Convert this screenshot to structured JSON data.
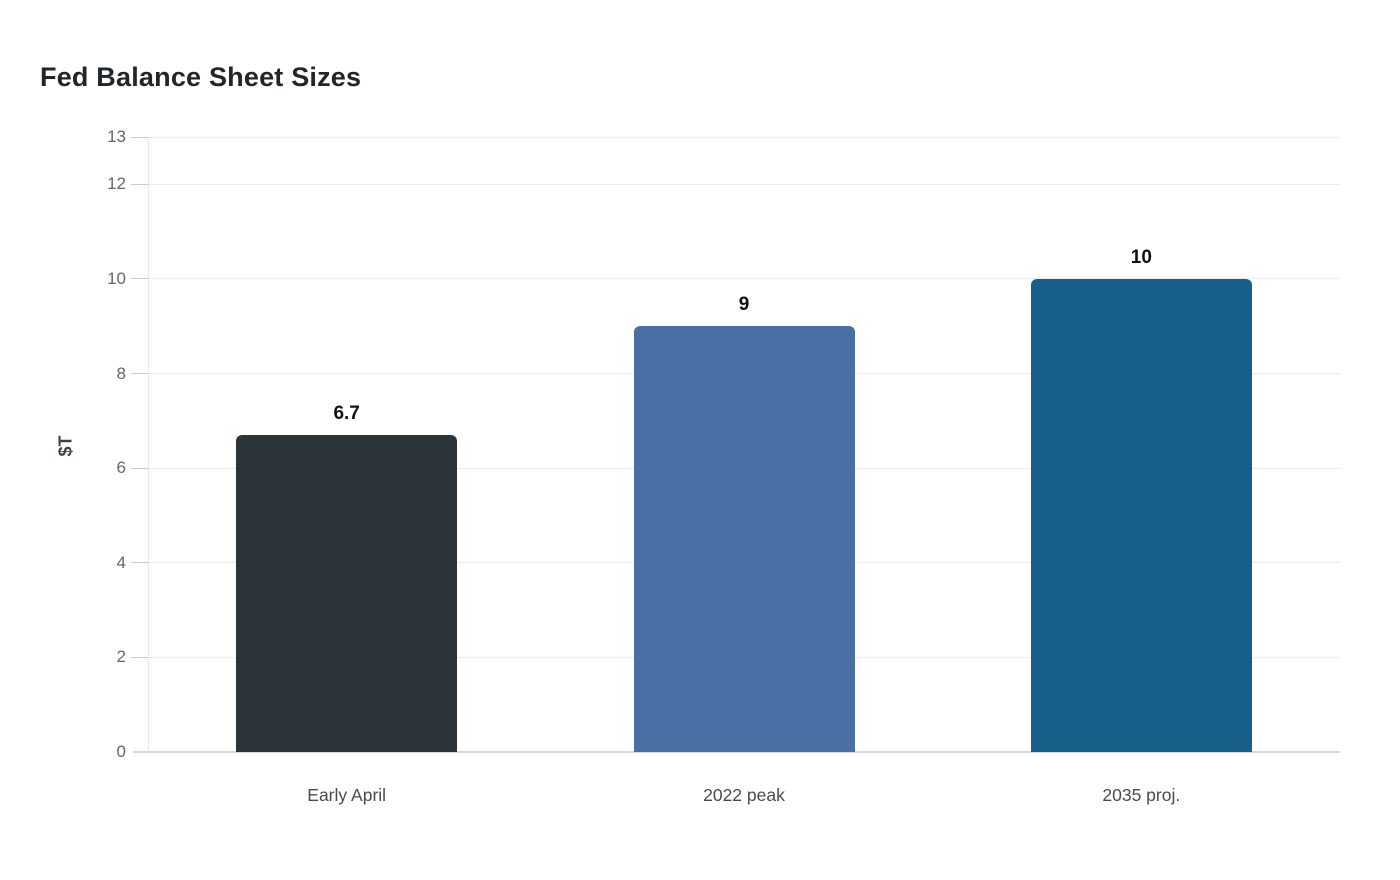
{
  "title": "Fed Balance Sheet Sizes",
  "chart_data": {
    "type": "bar",
    "title": "Fed Balance Sheet Sizes",
    "categories": [
      "Early April",
      "2022 peak",
      "2035 proj."
    ],
    "values": [
      6.7,
      9,
      10
    ],
    "value_labels": [
      "6.7",
      "9",
      "10"
    ],
    "bar_colors": [
      "#2b3439",
      "#4a6fa5",
      "#166089"
    ],
    "xlabel": "",
    "ylabel": "$T",
    "ylim": [
      0,
      13
    ],
    "yticks": [
      0,
      2,
      4,
      6,
      8,
      10,
      12,
      13
    ],
    "grid": true,
    "legend": false,
    "colors": {
      "background": "#ffffff",
      "title_text": "#21262b",
      "tick_text": "#666666",
      "category_text": "#4a4a4a",
      "value_label_text": "#111111",
      "axis_label_text": "#3d434b",
      "gridline": "#ececec",
      "zero_line": "#d7d7d7",
      "axis_dotted_line": "#d9d9d9"
    }
  }
}
